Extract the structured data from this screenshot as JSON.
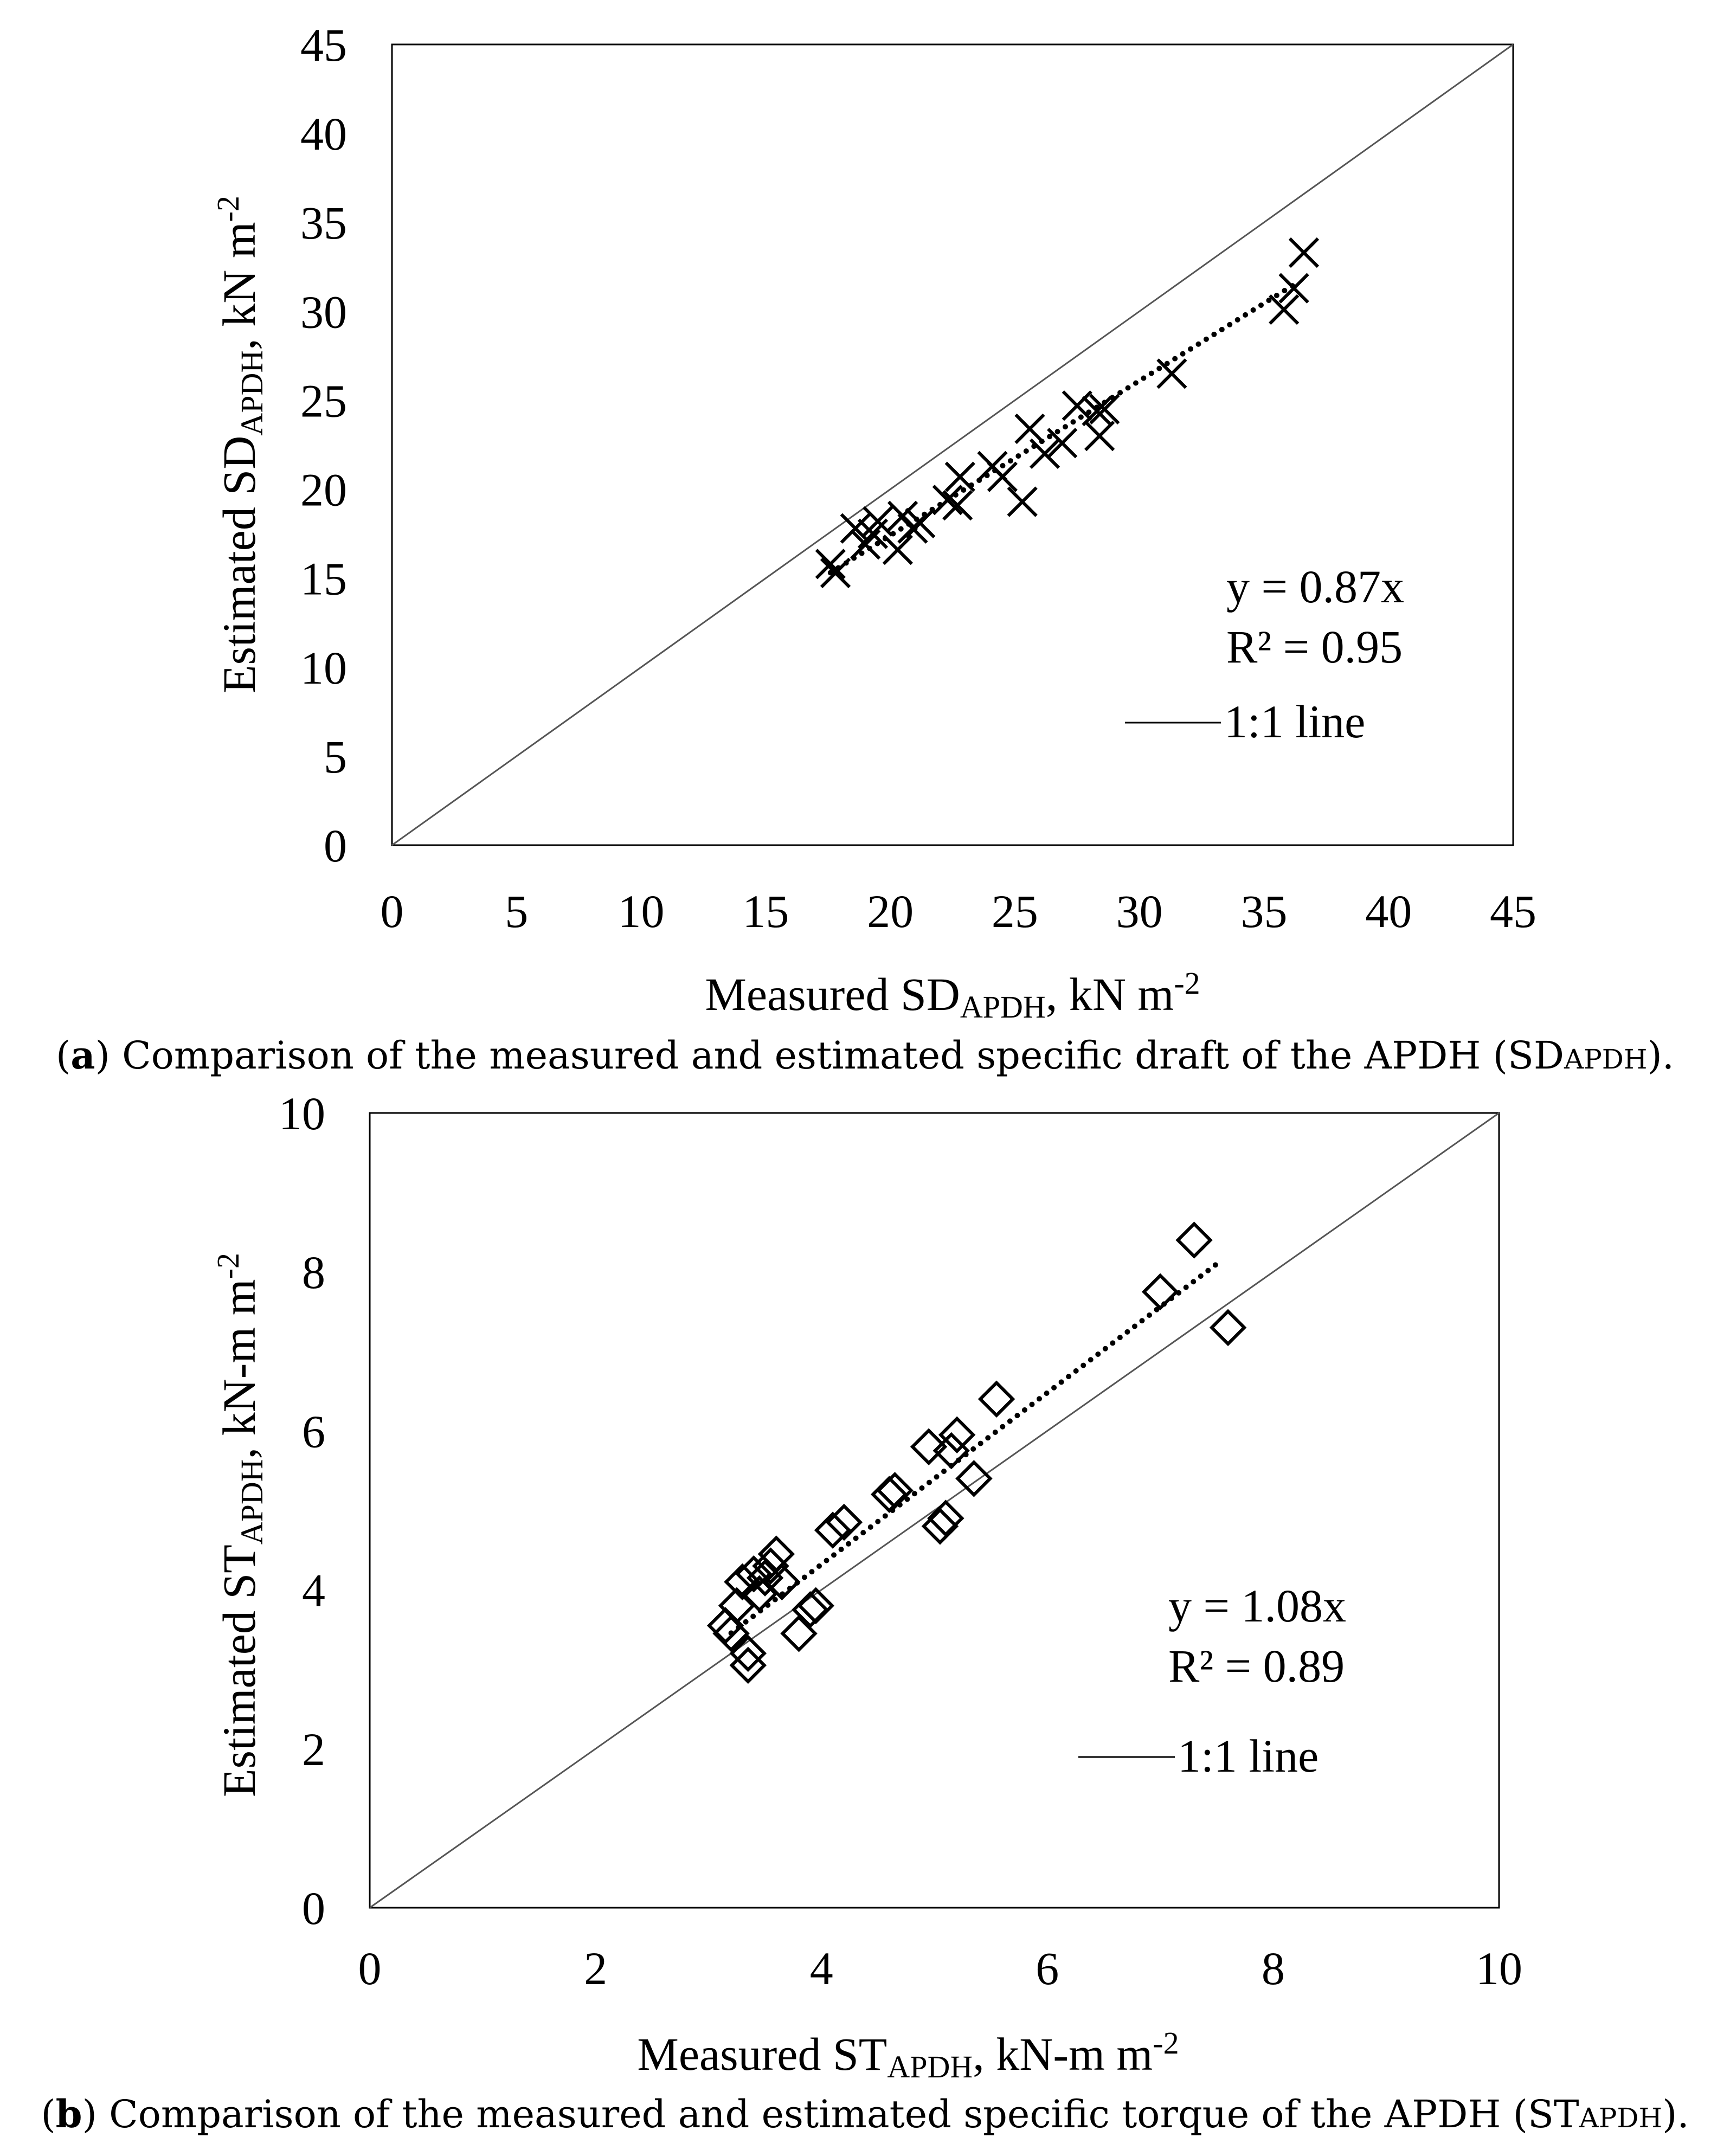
{
  "chart_data": [
    {
      "type": "scatter",
      "panel_letter": "a",
      "caption_text": "Comparison of the measured and estimated specific draft of the APDH (SD",
      "caption_sub": "APDH",
      "caption_tail": ").",
      "xlabel": "Measured SD",
      "xlabel_sub": "APDH",
      "xlabel_tail": ", kN m",
      "xlabel_sup": "-2",
      "ylabel": "Estimated SD",
      "ylabel_sub": "APDH",
      "ylabel_tail": ", kN m",
      "ylabel_sup": "-2",
      "xlim": [
        0,
        45
      ],
      "ylim": [
        0,
        45
      ],
      "xticks": [
        "0",
        "5",
        "10",
        "15",
        "20",
        "25",
        "30",
        "35",
        "40",
        "45"
      ],
      "yticks": [
        "0",
        "5",
        "10",
        "15",
        "20",
        "25",
        "30",
        "35",
        "40",
        "45"
      ],
      "marker": "x",
      "points": [
        [
          17.6,
          15.8
        ],
        [
          17.8,
          15.3
        ],
        [
          18.6,
          17.8
        ],
        [
          19.0,
          16.9
        ],
        [
          19.3,
          17.5
        ],
        [
          19.5,
          18.2
        ],
        [
          20.3,
          16.6
        ],
        [
          20.5,
          18.5
        ],
        [
          20.9,
          17.8
        ],
        [
          21.2,
          18.1
        ],
        [
          22.3,
          19.4
        ],
        [
          22.7,
          19.1
        ],
        [
          22.8,
          20.7
        ],
        [
          24.1,
          21.3
        ],
        [
          24.5,
          20.7
        ],
        [
          25.3,
          19.3
        ],
        [
          25.6,
          23.4
        ],
        [
          26.2,
          22.0
        ],
        [
          26.9,
          22.6
        ],
        [
          27.5,
          24.7
        ],
        [
          28.3,
          24.4
        ],
        [
          28.4,
          23.0
        ],
        [
          28.6,
          24.5
        ],
        [
          31.3,
          26.5
        ],
        [
          35.8,
          30.1
        ],
        [
          36.2,
          31.3
        ],
        [
          36.6,
          33.3
        ]
      ],
      "trendline": {
        "slope": 0.87,
        "x_range": [
          17.6,
          36.4
        ],
        "style": "dotted"
      },
      "annotations": {
        "equation": "y = 0.87x",
        "r2": "R² = 0.95",
        "identity_line_label": "1:1 line"
      }
    },
    {
      "type": "scatter",
      "panel_letter": "b",
      "caption_text": "Comparison of the measured and estimated specific torque of the APDH (ST",
      "caption_sub": "APDH",
      "caption_tail": ").",
      "xlabel": "Measured ST",
      "xlabel_sub": "APDH",
      "xlabel_tail": ", kN-m m",
      "xlabel_sup": "-2",
      "ylabel": "Estimated ST",
      "ylabel_sub": "APDH",
      "ylabel_tail": ", kN-m m",
      "ylabel_sup": "-2",
      "xlim": [
        0,
        10
      ],
      "ylim": [
        0,
        10
      ],
      "xticks": [
        "0",
        "2",
        "4",
        "6",
        "8",
        "10"
      ],
      "yticks": [
        "0",
        "2",
        "4",
        "6",
        "8",
        "10"
      ],
      "marker": "diamond",
      "points": [
        [
          3.15,
          3.55
        ],
        [
          3.2,
          3.45
        ],
        [
          3.25,
          3.8
        ],
        [
          3.3,
          4.1
        ],
        [
          3.35,
          3.05
        ],
        [
          3.35,
          3.2
        ],
        [
          3.4,
          4.2
        ],
        [
          3.45,
          3.95
        ],
        [
          3.5,
          4.15
        ],
        [
          3.55,
          4.3
        ],
        [
          3.6,
          4.45
        ],
        [
          3.65,
          4.1
        ],
        [
          3.8,
          3.45
        ],
        [
          3.9,
          3.75
        ],
        [
          3.95,
          3.8
        ],
        [
          4.1,
          4.75
        ],
        [
          4.2,
          4.85
        ],
        [
          4.6,
          5.2
        ],
        [
          4.65,
          5.25
        ],
        [
          4.95,
          5.8
        ],
        [
          5.05,
          4.8
        ],
        [
          5.1,
          4.9
        ],
        [
          5.15,
          5.75
        ],
        [
          5.2,
          5.95
        ],
        [
          5.35,
          5.4
        ],
        [
          5.55,
          6.4
        ],
        [
          7.0,
          7.75
        ],
        [
          7.3,
          8.4
        ],
        [
          7.6,
          7.3
        ]
      ],
      "trendline": {
        "slope": 1.08,
        "x_range": [
          3.2,
          7.55
        ],
        "style": "dotted"
      },
      "annotations": {
        "equation": "y = 1.08x",
        "r2": "R² = 0.89",
        "identity_line_label": "1:1 line"
      }
    }
  ]
}
